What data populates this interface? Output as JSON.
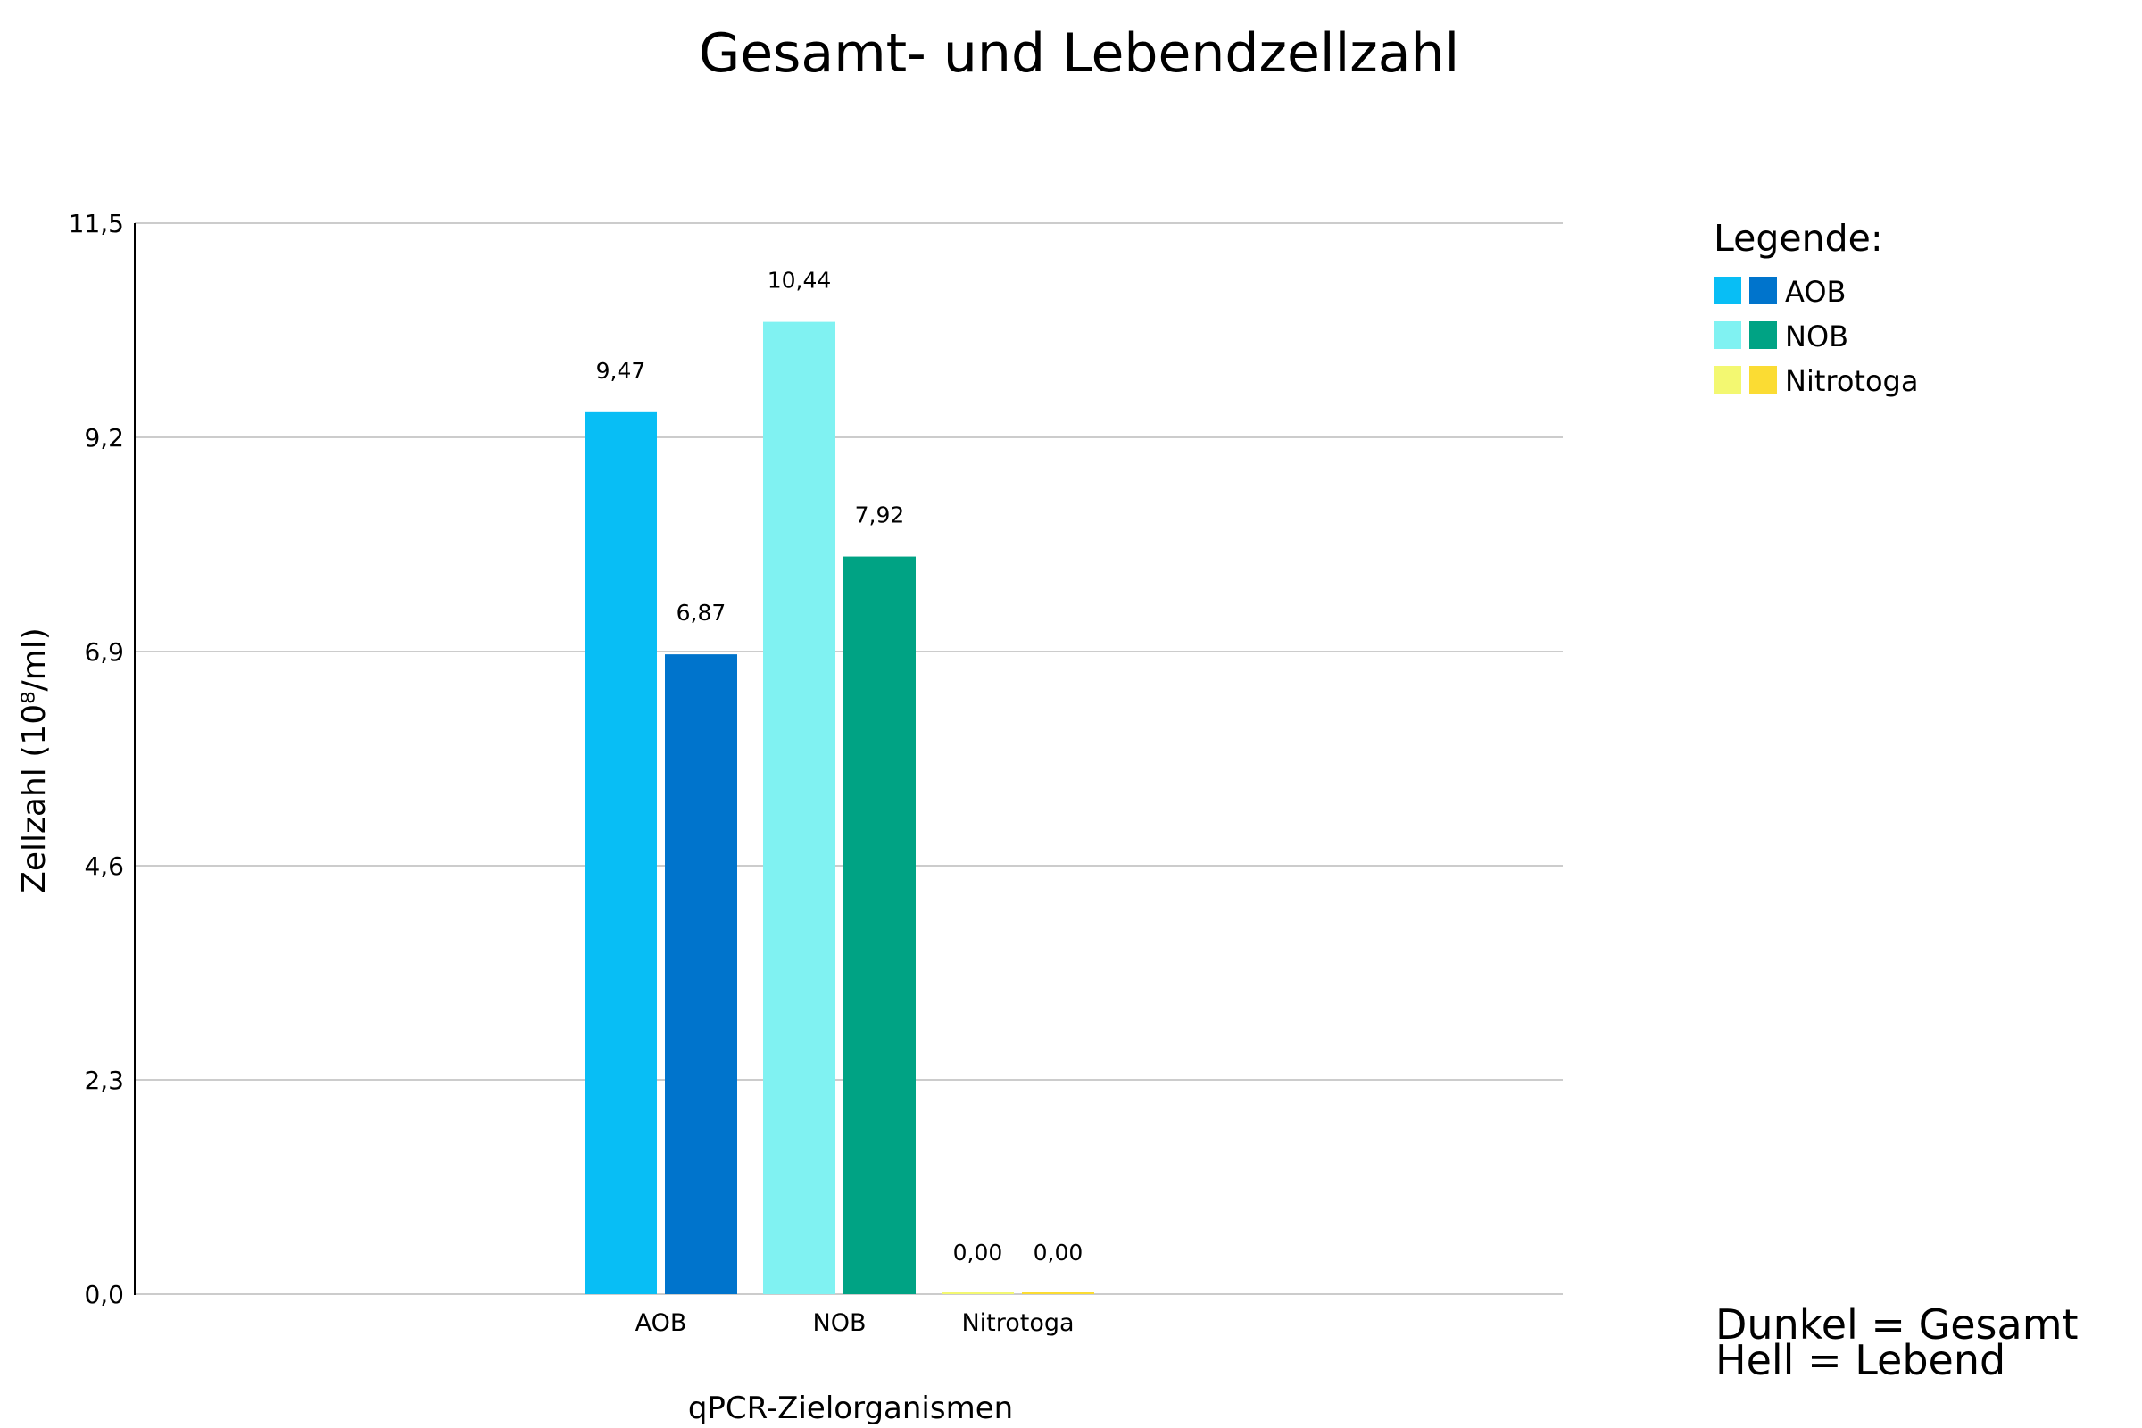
{
  "chart_data": {
    "type": "bar",
    "title": "Gesamt- und Lebendzellzahl",
    "xlabel": "qPCR-Zielorganismen",
    "ylabel": "Zellzahl (10⁸/ml)",
    "ylim": [
      0,
      11.5
    ],
    "yticks": [
      0,
      2.3,
      4.6,
      6.9,
      9.2,
      11.5
    ],
    "ytick_labels": [
      "0,0",
      "2,3",
      "4,6",
      "6,9",
      "9,2",
      "11,5"
    ],
    "grid": true,
    "categories": [
      "AOB",
      "NOB",
      "Nitrotoga"
    ],
    "series": [
      {
        "name": "Lebend (Hell)",
        "values": [
          9.47,
          10.44,
          0.0
        ],
        "labels": [
          "9,47",
          "10,44",
          "0,00"
        ],
        "colors": [
          "#08BEF5",
          "#80F2F2",
          "#F3F871"
        ]
      },
      {
        "name": "Gesamt (Dunkel)",
        "values": [
          6.87,
          7.92,
          0.0
        ],
        "labels": [
          "6,87",
          "7,92",
          "0,00"
        ],
        "colors": [
          "#0074CC",
          "#00A384",
          "#FBDC33"
        ]
      }
    ],
    "legend": {
      "title": "Legende:",
      "placement": "right",
      "items": [
        {
          "label": "AOB",
          "light": "#08BEF5",
          "dark": "#0074CC"
        },
        {
          "label": "NOB",
          "light": "#80F2F2",
          "dark": "#00A384"
        },
        {
          "label": "Nitrotoga",
          "light": "#F3F871",
          "dark": "#FBDC33"
        }
      ]
    },
    "notes": [
      "Dunkel = Gesamt",
      "Hell = Lebend"
    ]
  }
}
